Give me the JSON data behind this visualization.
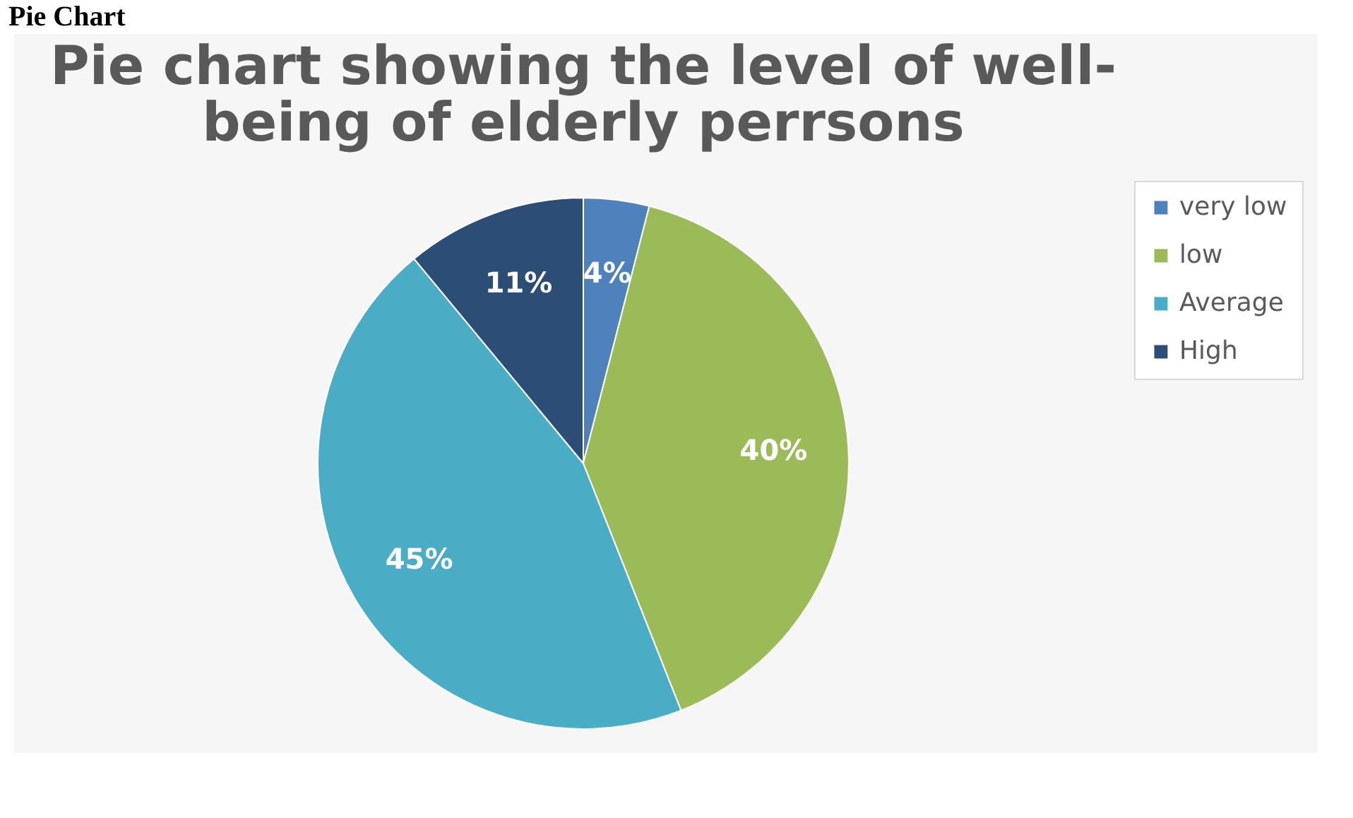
{
  "chart_data": {
    "type": "pie",
    "title": [
      "Pie chart showing the level of well-",
      "being of elderly perrsons"
    ],
    "annotations": [
      "Pie Chart"
    ],
    "categories": [
      "very low",
      "low",
      "Average",
      "High"
    ],
    "values": [
      4,
      40,
      45,
      11
    ],
    "colors": [
      "#4f81bd",
      "#9bbb59",
      "#4bacc6",
      "#2c4d75"
    ],
    "value_labels": [
      "4%",
      "40%",
      "45%",
      "11%"
    ],
    "legend": "right"
  }
}
